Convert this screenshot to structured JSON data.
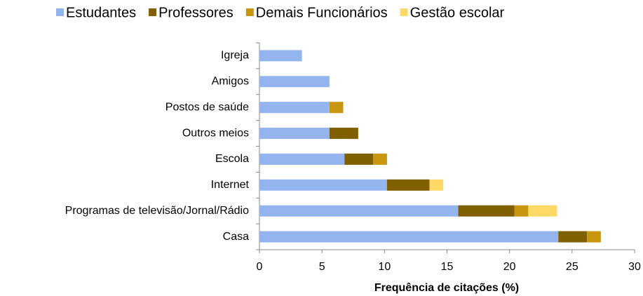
{
  "chart_data": {
    "type": "stacked-bar-horizontal",
    "categories": [
      "Igreja",
      "Amigos",
      "Postos de saúde",
      "Outros meios",
      "Escola",
      "Internet",
      "Programas de televisão/Jornal/Rádio",
      "Casa"
    ],
    "series": [
      {
        "name": "Estudantes",
        "color": "#94b4ef",
        "values": [
          3.4,
          5.6,
          5.6,
          5.6,
          6.8,
          10.2,
          15.9,
          23.9
        ]
      },
      {
        "name": "Professores",
        "color": "#7f5f00",
        "values": [
          null,
          null,
          null,
          2.3,
          2.3,
          3.4,
          4.5,
          2.3
        ]
      },
      {
        "name": "Demais Funcionários",
        "color": "#c8960f",
        "values": [
          null,
          null,
          1.1,
          null,
          1.1,
          null,
          1.1,
          1.1
        ]
      },
      {
        "name": "Gestão escolar",
        "color": "#ffd966",
        "values": [
          null,
          null,
          null,
          null,
          null,
          1.1,
          2.3,
          null
        ]
      }
    ],
    "xlabel": "Frequência de citações (%)",
    "xlim": [
      0,
      30
    ],
    "xticks": [
      0,
      5,
      10,
      15,
      20,
      25,
      30
    ],
    "legend": "top"
  }
}
